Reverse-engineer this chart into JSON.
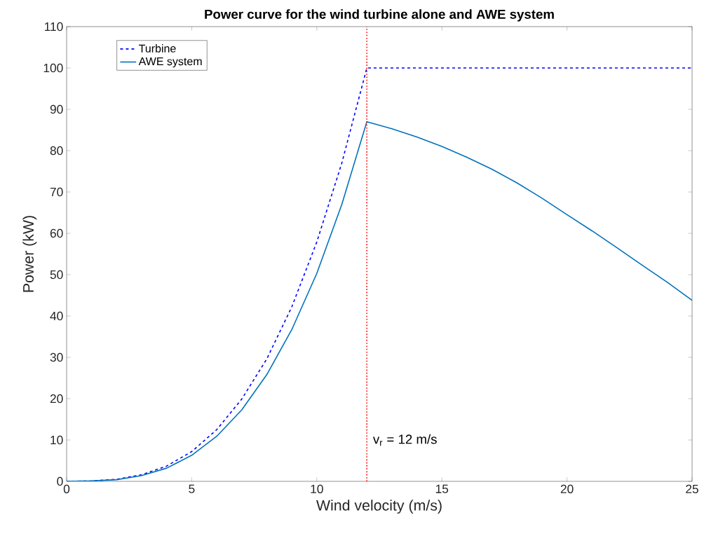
{
  "chart_data": {
    "type": "line",
    "title": "**Power curve for the wind turbine alone and AWE system**",
    "xlabel": "Wind velocity (m/s)",
    "ylabel": "Power (kW)",
    "xlim": [
      0,
      25
    ],
    "ylim": [
      0,
      110
    ],
    "xticks": [
      0,
      5,
      10,
      15,
      20,
      25
    ],
    "yticks": [
      0,
      10,
      20,
      30,
      40,
      50,
      60,
      70,
      80,
      90,
      100,
      110
    ],
    "legend": "top left",
    "grid": false,
    "series": [
      {
        "name": "Turbine",
        "color": "#0000ff",
        "line_style": "dashed",
        "x": [
          0,
          1,
          2,
          3,
          4,
          5,
          6,
          7,
          8,
          9,
          10,
          11,
          12,
          25
        ],
        "values": [
          0,
          0.1,
          0.5,
          1.6,
          3.7,
          7.2,
          12.5,
          19.9,
          29.6,
          42.2,
          57.9,
          77.0,
          100,
          100
        ]
      },
      {
        "name": "AWE system",
        "color": "#0072bd",
        "line_style": "solid",
        "x": [
          0,
          1,
          2,
          3,
          4,
          5,
          6,
          7,
          8,
          9,
          10,
          11,
          12,
          13,
          14,
          15,
          16,
          17,
          18,
          19,
          20,
          21,
          22,
          23,
          24,
          25
        ],
        "values": [
          0,
          0.1,
          0.4,
          1.4,
          3.2,
          6.3,
          10.9,
          17.3,
          25.8,
          36.7,
          50.3,
          67.0,
          87.0,
          85.3,
          83.3,
          81.0,
          78.4,
          75.5,
          72.2,
          68.5,
          64.5,
          60.6,
          56.5,
          52.3,
          48.2,
          43.8
        ]
      }
    ],
    "ref_lines": [
      {
        "axis": "x",
        "value": 12,
        "color": "#ff0000",
        "line_style": "dotted"
      }
    ],
    "annotations": [
      {
        "text": "v$_{r}$ = 12 m/s",
        "x": 12,
        "y": 10
      }
    ]
  }
}
